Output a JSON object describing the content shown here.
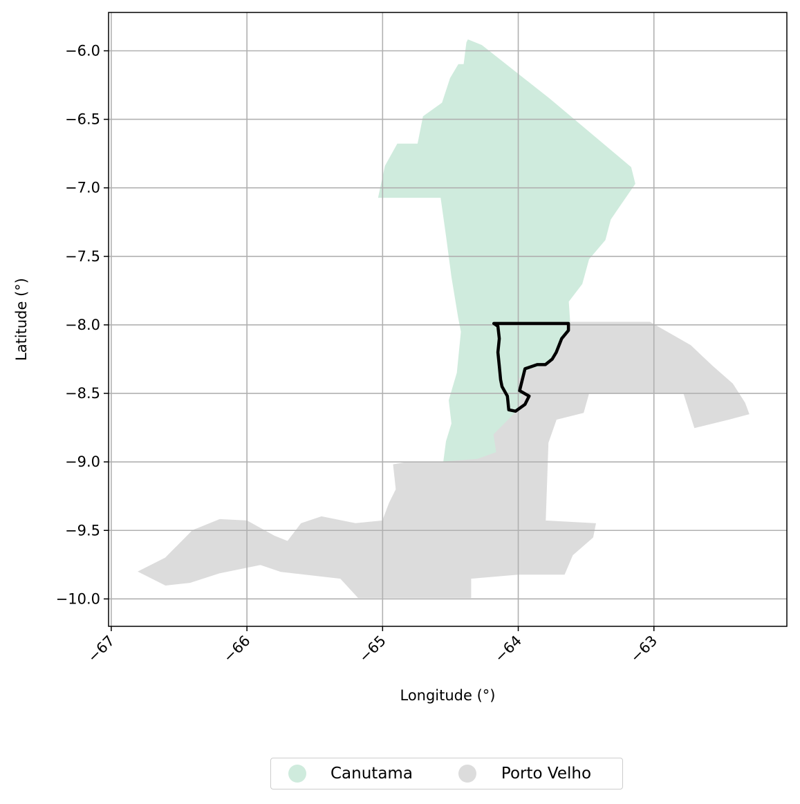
{
  "chart_data": {
    "type": "map",
    "xlabel": "Longitude (°)",
    "ylabel": "Latitude (°)",
    "xlim": [
      -67.02,
      -62.02
    ],
    "ylim": [
      -10.2,
      -5.72
    ],
    "x_ticks": [
      -67,
      -66,
      -65,
      -64,
      -63
    ],
    "x_tick_labels": [
      "−67",
      "−66",
      "−65",
      "−64",
      "−63"
    ],
    "y_ticks": [
      -6.0,
      -6.5,
      -7.0,
      -7.5,
      -8.0,
      -8.5,
      -9.0,
      -9.5,
      -10.0
    ],
    "y_tick_labels": [
      "−6.0",
      "−6.5",
      "−7.0",
      "−7.5",
      "−8.0",
      "−8.5",
      "−9.0",
      "−9.5",
      "−10.0"
    ],
    "grid": true,
    "legend_placement": "bottom-center",
    "regions": [
      {
        "name": "Canutama",
        "color": "#cfebdd",
        "outline": [
          [
            -64.37,
            -5.92
          ],
          [
            -64.27,
            -5.96
          ],
          [
            -63.77,
            -6.35
          ],
          [
            -63.17,
            -6.85
          ],
          [
            -63.14,
            -6.97
          ],
          [
            -63.32,
            -7.23
          ],
          [
            -63.36,
            -7.38
          ],
          [
            -63.48,
            -7.52
          ],
          [
            -63.53,
            -7.7
          ],
          [
            -63.63,
            -7.83
          ],
          [
            -63.62,
            -7.98
          ],
          [
            -63.64,
            -8.04
          ],
          [
            -63.74,
            -8.24
          ],
          [
            -63.82,
            -8.3
          ],
          [
            -63.93,
            -8.33
          ],
          [
            -64.0,
            -8.4
          ],
          [
            -63.97,
            -8.5
          ],
          [
            -64.0,
            -8.62
          ],
          [
            -64.18,
            -8.8
          ],
          [
            -64.16,
            -8.93
          ],
          [
            -64.3,
            -8.98
          ],
          [
            -64.55,
            -9.0
          ],
          [
            -64.53,
            -8.85
          ],
          [
            -64.49,
            -8.72
          ],
          [
            -64.51,
            -8.55
          ],
          [
            -64.45,
            -8.35
          ],
          [
            -64.42,
            -8.05
          ],
          [
            -64.44,
            -7.95
          ],
          [
            -64.49,
            -7.65
          ],
          [
            -64.53,
            -7.35
          ],
          [
            -64.57,
            -7.07
          ],
          [
            -65.03,
            -7.07
          ],
          [
            -64.98,
            -6.84
          ],
          [
            -64.89,
            -6.68
          ],
          [
            -64.74,
            -6.68
          ],
          [
            -64.7,
            -6.48
          ],
          [
            -64.56,
            -6.38
          ],
          [
            -64.5,
            -6.2
          ],
          [
            -64.44,
            -6.1
          ],
          [
            -64.4,
            -6.1
          ],
          [
            -64.38,
            -5.94
          ]
        ]
      },
      {
        "name": "Porto Velho",
        "color": "#dcdcdc",
        "outline": [
          [
            -63.62,
            -7.98
          ],
          [
            -63.03,
            -7.98
          ],
          [
            -62.73,
            -8.15
          ],
          [
            -62.57,
            -8.3
          ],
          [
            -62.42,
            -8.43
          ],
          [
            -62.33,
            -8.57
          ],
          [
            -62.3,
            -8.65
          ],
          [
            -62.45,
            -8.69
          ],
          [
            -62.7,
            -8.75
          ],
          [
            -62.78,
            -8.5
          ],
          [
            -63.48,
            -8.5
          ],
          [
            -63.52,
            -8.64
          ],
          [
            -63.72,
            -8.69
          ],
          [
            -63.78,
            -8.86
          ],
          [
            -63.8,
            -9.43
          ],
          [
            -63.43,
            -9.45
          ],
          [
            -63.45,
            -9.55
          ],
          [
            -63.6,
            -9.68
          ],
          [
            -63.66,
            -9.82
          ],
          [
            -64.0,
            -9.82
          ],
          [
            -64.35,
            -9.85
          ],
          [
            -64.35,
            -9.99
          ],
          [
            -65.18,
            -9.99
          ],
          [
            -65.31,
            -9.85
          ],
          [
            -65.75,
            -9.8
          ],
          [
            -65.9,
            -9.75
          ],
          [
            -66.2,
            -9.81
          ],
          [
            -66.42,
            -9.88
          ],
          [
            -66.6,
            -9.9
          ],
          [
            -66.8,
            -9.8
          ],
          [
            -66.6,
            -9.7
          ],
          [
            -66.4,
            -9.5
          ],
          [
            -66.2,
            -9.42
          ],
          [
            -66.0,
            -9.43
          ],
          [
            -65.8,
            -9.54
          ],
          [
            -65.7,
            -9.58
          ],
          [
            -65.6,
            -9.45
          ],
          [
            -65.45,
            -9.4
          ],
          [
            -65.2,
            -9.45
          ],
          [
            -65.0,
            -9.43
          ],
          [
            -64.95,
            -9.3
          ],
          [
            -64.9,
            -9.2
          ],
          [
            -64.92,
            -9.02
          ],
          [
            -64.8,
            -9.0
          ],
          [
            -64.55,
            -9.0
          ],
          [
            -64.3,
            -8.98
          ],
          [
            -64.16,
            -8.93
          ],
          [
            -64.18,
            -8.8
          ],
          [
            -64.0,
            -8.62
          ],
          [
            -63.97,
            -8.5
          ],
          [
            -64.0,
            -8.4
          ],
          [
            -63.93,
            -8.33
          ],
          [
            -63.82,
            -8.3
          ],
          [
            -63.74,
            -8.24
          ],
          [
            -63.64,
            -8.04
          ]
        ]
      }
    ],
    "highlight_outline": {
      "color": "#000000",
      "outline": [
        [
          -64.18,
          -7.99
        ],
        [
          -63.63,
          -7.99
        ],
        [
          -63.63,
          -8.04
        ],
        [
          -63.68,
          -8.1
        ],
        [
          -63.72,
          -8.2
        ],
        [
          -63.75,
          -8.25
        ],
        [
          -63.8,
          -8.29
        ],
        [
          -63.86,
          -8.29
        ],
        [
          -63.95,
          -8.32
        ],
        [
          -63.97,
          -8.4
        ],
        [
          -63.99,
          -8.48
        ],
        [
          -63.92,
          -8.52
        ],
        [
          -63.95,
          -8.58
        ],
        [
          -64.02,
          -8.63
        ],
        [
          -64.07,
          -8.62
        ],
        [
          -64.08,
          -8.52
        ],
        [
          -64.12,
          -8.45
        ],
        [
          -64.13,
          -8.4
        ],
        [
          -64.14,
          -8.3
        ],
        [
          -64.15,
          -8.2
        ],
        [
          -64.14,
          -8.1
        ],
        [
          -64.15,
          -8.01
        ],
        [
          -64.18,
          -7.99
        ]
      ]
    }
  },
  "legend": {
    "items": [
      {
        "label": "Canutama",
        "color": "#cfebdd"
      },
      {
        "label": "Porto Velho",
        "color": "#dcdcdc"
      }
    ]
  }
}
